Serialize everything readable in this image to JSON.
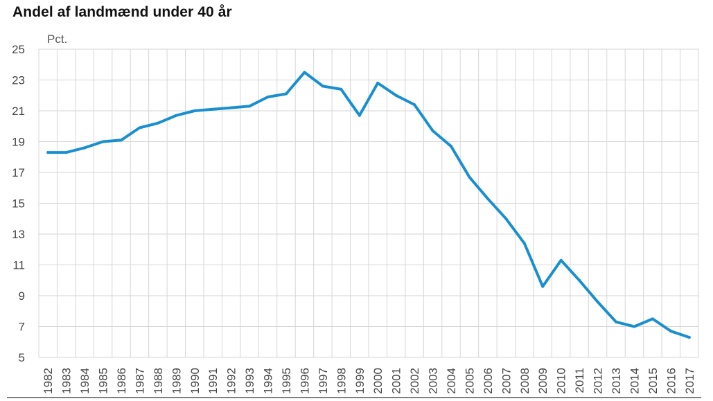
{
  "chart_data": {
    "type": "line",
    "title": "Andel af landmænd under 40 år",
    "ylabel": "Pct.",
    "xlabel": "",
    "ylim": [
      5,
      25
    ],
    "yticks": [
      5,
      7,
      9,
      11,
      13,
      15,
      17,
      19,
      21,
      23,
      25
    ],
    "grid": true,
    "line_color": "#1a8fd0",
    "categories": [
      "1982",
      "1983",
      "1984",
      "1985",
      "1986",
      "1987",
      "1988",
      "1989",
      "1990",
      "1991",
      "1992",
      "1993",
      "1994",
      "1995",
      "1996",
      "1997",
      "1998",
      "1999",
      "2000",
      "2001",
      "2002",
      "2003",
      "2004",
      "2005",
      "2006",
      "2007",
      "2008",
      "2009",
      "2010",
      "2011",
      "2012",
      "2013",
      "2014",
      "2015",
      "2016",
      "2017"
    ],
    "series": [
      {
        "values": [
          18.3,
          18.3,
          18.6,
          19.0,
          19.1,
          19.9,
          20.2,
          20.7,
          21.0,
          21.1,
          21.2,
          21.3,
          21.9,
          22.1,
          23.5,
          22.6,
          22.4,
          20.7,
          22.8,
          22.0,
          21.4,
          19.7,
          18.7,
          16.7,
          15.3,
          14.0,
          12.4,
          9.6,
          11.3,
          10.0,
          8.6,
          7.3,
          7.0,
          7.5,
          6.7,
          6.3
        ]
      }
    ]
  }
}
